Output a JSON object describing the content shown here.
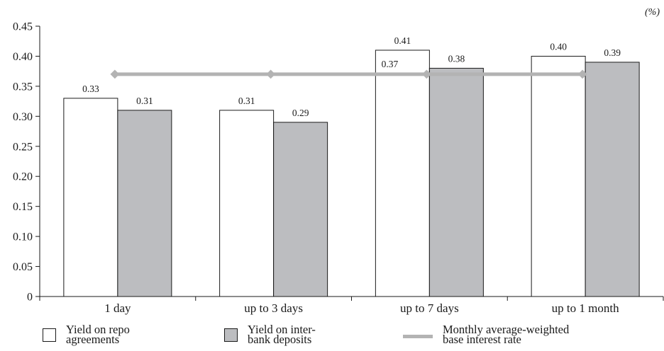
{
  "chart_data": {
    "type": "bar",
    "unit_label": "(%)",
    "categories": [
      "1 day",
      "up to 3 days",
      "up to 7 days",
      "up to 1 month"
    ],
    "series": [
      {
        "name": "Yield on repo\nagreements",
        "kind": "bar",
        "values": [
          0.33,
          0.31,
          0.41,
          0.4
        ],
        "labels": [
          "0.33",
          "0.31",
          "0.41",
          "0.40"
        ],
        "color": "#ffffff"
      },
      {
        "name": "Yield on inter-\nbank deposits",
        "kind": "bar",
        "values": [
          0.31,
          0.29,
          0.38,
          0.39
        ],
        "labels": [
          "0.31",
          "0.29",
          "0.38",
          "0.39"
        ],
        "color": "#bcbdc0"
      },
      {
        "name": "Monthly average-weighted\nbase interest rate",
        "kind": "line",
        "values": [
          0.37,
          0.37,
          0.37,
          0.37
        ],
        "labels": [
          "0.37"
        ],
        "color": "#b3b3b3"
      }
    ],
    "ylim": [
      0,
      0.45
    ],
    "yticks": [
      "0",
      "0.05",
      "0.10",
      "0.15",
      "0.20",
      "0.25",
      "0.30",
      "0.35",
      "0.40",
      "0.45"
    ],
    "grid": false,
    "legend": "bottom"
  }
}
